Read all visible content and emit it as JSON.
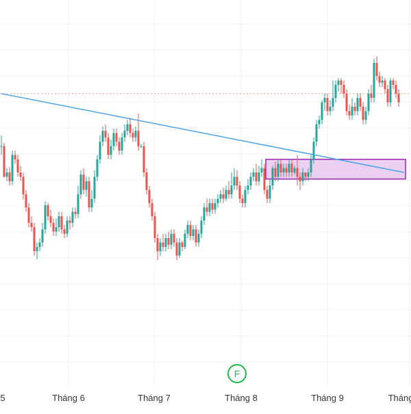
{
  "chart_data": {
    "type": "candlestick",
    "title": "",
    "xlabel": "",
    "ylabel": "",
    "x_tick_labels": [
      "5",
      "Tháng 6",
      "Tháng 7",
      "Tháng 8",
      "Tháng 9",
      "Tháng"
    ],
    "grid": true,
    "colors": {
      "up": "#26a69a",
      "down": "#ef5350",
      "grid": "#eef0f3",
      "trendline": "#4aa3e6",
      "level_line": "#f0a090",
      "zone_fill": "#e8c8ee",
      "zone_border": "#9c27b0",
      "marker": "#1fb84a"
    },
    "trendline": {
      "start_bar": 0,
      "start_price": 0.84,
      "end_bar": 147,
      "end_price": 0.66
    },
    "horizontal_level": {
      "price": 0.84
    },
    "zone": {
      "start_bar": 97,
      "end_bar": 147,
      "top": 0.69,
      "bottom": 0.645
    },
    "marker": {
      "bar": 86,
      "label": "F"
    },
    "candles": [
      [
        0.72,
        0.72,
        0.7,
        0.745
      ],
      [
        0.72,
        0.65,
        0.648,
        0.728
      ],
      [
        0.65,
        0.66,
        0.64,
        0.67
      ],
      [
        0.66,
        0.64,
        0.63,
        0.672
      ],
      [
        0.64,
        0.7,
        0.632,
        0.71
      ],
      [
        0.7,
        0.69,
        0.68,
        0.71
      ],
      [
        0.69,
        0.66,
        0.65,
        0.7
      ],
      [
        0.66,
        0.65,
        0.64,
        0.675
      ],
      [
        0.65,
        0.61,
        0.598,
        0.66
      ],
      [
        0.61,
        0.58,
        0.57,
        0.62
      ],
      [
        0.58,
        0.545,
        0.535,
        0.59
      ],
      [
        0.545,
        0.535,
        0.525,
        0.56
      ],
      [
        0.535,
        0.48,
        0.47,
        0.545
      ],
      [
        0.48,
        0.49,
        0.462,
        0.5
      ],
      [
        0.49,
        0.5,
        0.48,
        0.51
      ],
      [
        0.5,
        0.53,
        0.49,
        0.545
      ],
      [
        0.53,
        0.585,
        0.52,
        0.595
      ],
      [
        0.585,
        0.56,
        0.55,
        0.59
      ],
      [
        0.56,
        0.545,
        0.535,
        0.575
      ],
      [
        0.545,
        0.525,
        0.515,
        0.555
      ],
      [
        0.525,
        0.535,
        0.515,
        0.555
      ],
      [
        0.535,
        0.56,
        0.525,
        0.57
      ],
      [
        0.56,
        0.53,
        0.52,
        0.57
      ],
      [
        0.53,
        0.52,
        0.51,
        0.54
      ],
      [
        0.52,
        0.55,
        0.512,
        0.56
      ],
      [
        0.55,
        0.545,
        0.53,
        0.56
      ],
      [
        0.545,
        0.57,
        0.535,
        0.58
      ],
      [
        0.57,
        0.565,
        0.555,
        0.58
      ],
      [
        0.565,
        0.61,
        0.556,
        0.63
      ],
      [
        0.61,
        0.655,
        0.6,
        0.665
      ],
      [
        0.655,
        0.62,
        0.61,
        0.67
      ],
      [
        0.62,
        0.64,
        0.605,
        0.65
      ],
      [
        0.64,
        0.58,
        0.57,
        0.65
      ],
      [
        0.58,
        0.6,
        0.57,
        0.62
      ],
      [
        0.6,
        0.65,
        0.59,
        0.665
      ],
      [
        0.65,
        0.69,
        0.64,
        0.7
      ],
      [
        0.69,
        0.73,
        0.68,
        0.745
      ],
      [
        0.73,
        0.755,
        0.72,
        0.765
      ],
      [
        0.755,
        0.74,
        0.73,
        0.77
      ],
      [
        0.74,
        0.7,
        0.69,
        0.75
      ],
      [
        0.7,
        0.72,
        0.69,
        0.735
      ],
      [
        0.72,
        0.75,
        0.71,
        0.76
      ],
      [
        0.75,
        0.73,
        0.72,
        0.76
      ],
      [
        0.73,
        0.71,
        0.7,
        0.74
      ],
      [
        0.71,
        0.74,
        0.7,
        0.75
      ],
      [
        0.74,
        0.755,
        0.73,
        0.77
      ],
      [
        0.755,
        0.77,
        0.745,
        0.78
      ],
      [
        0.77,
        0.75,
        0.74,
        0.785
      ],
      [
        0.75,
        0.74,
        0.73,
        0.76
      ],
      [
        0.74,
        0.755,
        0.73,
        0.765
      ],
      [
        0.755,
        0.72,
        0.71,
        0.795
      ],
      [
        0.72,
        0.72,
        0.715,
        0.725
      ],
      [
        0.72,
        0.66,
        0.65,
        0.73
      ],
      [
        0.66,
        0.62,
        0.61,
        0.67
      ],
      [
        0.62,
        0.59,
        0.58,
        0.63
      ],
      [
        0.59,
        0.56,
        0.55,
        0.6
      ],
      [
        0.56,
        0.51,
        0.5,
        0.57
      ],
      [
        0.51,
        0.48,
        0.46,
        0.52
      ],
      [
        0.48,
        0.5,
        0.47,
        0.51
      ],
      [
        0.5,
        0.49,
        0.48,
        0.52
      ],
      [
        0.49,
        0.51,
        0.48,
        0.52
      ],
      [
        0.51,
        0.495,
        0.485,
        0.525
      ],
      [
        0.495,
        0.52,
        0.485,
        0.53
      ],
      [
        0.52,
        0.5,
        0.49,
        0.53
      ],
      [
        0.5,
        0.47,
        0.46,
        0.51
      ],
      [
        0.47,
        0.5,
        0.465,
        0.51
      ],
      [
        0.5,
        0.49,
        0.48,
        0.505
      ],
      [
        0.49,
        0.52,
        0.485,
        0.53
      ],
      [
        0.52,
        0.54,
        0.51,
        0.55
      ],
      [
        0.54,
        0.515,
        0.505,
        0.55
      ],
      [
        0.515,
        0.53,
        0.505,
        0.54
      ],
      [
        0.53,
        0.5,
        0.49,
        0.54
      ],
      [
        0.5,
        0.52,
        0.49,
        0.53
      ],
      [
        0.52,
        0.55,
        0.51,
        0.56
      ],
      [
        0.55,
        0.58,
        0.54,
        0.59
      ],
      [
        0.58,
        0.57,
        0.56,
        0.6
      ],
      [
        0.57,
        0.59,
        0.56,
        0.6
      ],
      [
        0.59,
        0.575,
        0.565,
        0.6
      ],
      [
        0.575,
        0.59,
        0.565,
        0.6
      ],
      [
        0.59,
        0.6,
        0.58,
        0.61
      ],
      [
        0.6,
        0.61,
        0.59,
        0.62
      ],
      [
        0.61,
        0.6,
        0.59,
        0.625
      ],
      [
        0.6,
        0.62,
        0.595,
        0.63
      ],
      [
        0.62,
        0.61,
        0.6,
        0.64
      ],
      [
        0.61,
        0.63,
        0.6,
        0.66
      ],
      [
        0.63,
        0.65,
        0.62,
        0.67
      ],
      [
        0.65,
        0.63,
        0.62,
        0.665
      ],
      [
        0.63,
        0.6,
        0.59,
        0.64
      ],
      [
        0.6,
        0.59,
        0.58,
        0.61
      ],
      [
        0.59,
        0.62,
        0.58,
        0.63
      ],
      [
        0.62,
        0.63,
        0.61,
        0.645
      ],
      [
        0.63,
        0.65,
        0.62,
        0.66
      ],
      [
        0.65,
        0.66,
        0.64,
        0.67
      ],
      [
        0.66,
        0.64,
        0.63,
        0.68
      ],
      [
        0.64,
        0.66,
        0.63,
        0.675
      ],
      [
        0.66,
        0.67,
        0.65,
        0.69
      ],
      [
        0.67,
        0.62,
        0.61,
        0.68
      ],
      [
        0.62,
        0.6,
        0.59,
        0.63
      ],
      [
        0.6,
        0.63,
        0.59,
        0.645
      ],
      [
        0.63,
        0.67,
        0.62,
        0.675
      ],
      [
        0.67,
        0.65,
        0.64,
        0.685
      ],
      [
        0.65,
        0.68,
        0.64,
        0.69
      ],
      [
        0.68,
        0.66,
        0.65,
        0.69
      ],
      [
        0.66,
        0.67,
        0.65,
        0.68
      ],
      [
        0.67,
        0.66,
        0.65,
        0.68
      ],
      [
        0.66,
        0.68,
        0.65,
        0.69
      ],
      [
        0.68,
        0.66,
        0.65,
        0.69
      ],
      [
        0.66,
        0.67,
        0.655,
        0.675
      ],
      [
        0.67,
        0.65,
        0.63,
        0.7
      ],
      [
        0.65,
        0.64,
        0.62,
        0.66
      ],
      [
        0.64,
        0.66,
        0.63,
        0.67
      ],
      [
        0.66,
        0.65,
        0.64,
        0.66
      ],
      [
        0.65,
        0.66,
        0.64,
        0.67
      ],
      [
        0.66,
        0.69,
        0.65,
        0.7
      ],
      [
        0.69,
        0.73,
        0.68,
        0.74
      ],
      [
        0.73,
        0.77,
        0.72,
        0.78
      ],
      [
        0.77,
        0.78,
        0.76,
        0.79
      ],
      [
        0.78,
        0.82,
        0.77,
        0.825
      ],
      [
        0.82,
        0.83,
        0.8,
        0.84
      ],
      [
        0.83,
        0.8,
        0.79,
        0.84
      ],
      [
        0.8,
        0.81,
        0.79,
        0.825
      ],
      [
        0.81,
        0.83,
        0.8,
        0.87
      ],
      [
        0.83,
        0.86,
        0.82,
        0.87
      ],
      [
        0.86,
        0.87,
        0.845,
        0.875
      ],
      [
        0.87,
        0.86,
        0.84,
        0.875
      ],
      [
        0.86,
        0.84,
        0.83,
        0.87
      ],
      [
        0.84,
        0.8,
        0.79,
        0.85
      ],
      [
        0.8,
        0.79,
        0.78,
        0.815
      ],
      [
        0.79,
        0.81,
        0.78,
        0.83
      ],
      [
        0.81,
        0.8,
        0.79,
        0.82
      ],
      [
        0.8,
        0.83,
        0.79,
        0.84
      ],
      [
        0.83,
        0.81,
        0.8,
        0.84
      ],
      [
        0.81,
        0.78,
        0.77,
        0.82
      ],
      [
        0.78,
        0.8,
        0.77,
        0.81
      ],
      [
        0.8,
        0.84,
        0.79,
        0.85
      ],
      [
        0.84,
        0.83,
        0.82,
        0.86
      ],
      [
        0.83,
        0.91,
        0.82,
        0.92
      ],
      [
        0.91,
        0.88,
        0.87,
        0.925
      ],
      [
        0.88,
        0.865,
        0.855,
        0.89
      ],
      [
        0.865,
        0.87,
        0.855,
        0.88
      ],
      [
        0.87,
        0.85,
        0.84,
        0.875
      ],
      [
        0.85,
        0.82,
        0.81,
        0.86
      ],
      [
        0.82,
        0.87,
        0.81,
        0.875
      ],
      [
        0.87,
        0.86,
        0.85,
        0.875
      ],
      [
        0.86,
        0.84,
        0.83,
        0.87
      ],
      [
        0.84,
        0.82,
        0.81,
        0.85
      ]
    ]
  }
}
